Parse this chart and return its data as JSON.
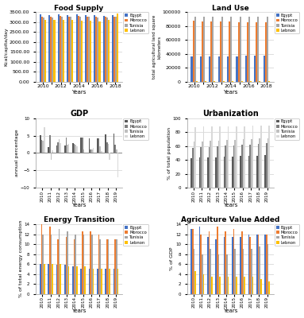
{
  "years_10_18": [
    2010,
    2012,
    2014,
    2016,
    2018
  ],
  "years_10_18_full": [
    2010,
    2011,
    2012,
    2013,
    2014,
    2015,
    2016,
    2017,
    2018
  ],
  "years_10_19": [
    2010,
    2011,
    2012,
    2013,
    2014,
    2015,
    2016,
    2017,
    2018,
    2019
  ],
  "food_supply": {
    "Egypt": [
      3380,
      3350,
      3390,
      3370,
      3380,
      3350,
      3360,
      3330,
      3350
    ],
    "Morocco": [
      3280,
      3270,
      3310,
      3290,
      3300,
      3290,
      3260,
      3280,
      3290
    ],
    "Tunisia": [
      3240,
      3250,
      3280,
      3260,
      3270,
      3270,
      3220,
      3250,
      3260
    ],
    "Lebnon": [
      3100,
      3120,
      3110,
      3100,
      3080,
      3060,
      3050,
      3100,
      3450
    ]
  },
  "land_use": {
    "Egypt": [
      36000,
      36000,
      36000,
      37000,
      37000,
      37000,
      38000,
      38000,
      38000
    ],
    "Morocco": [
      88000,
      87000,
      87000,
      87000,
      87000,
      86000,
      86000,
      85000,
      85000
    ],
    "Tunisia": [
      94000,
      94000,
      94000,
      94000,
      93000,
      93000,
      93000,
      93000,
      93000
    ],
    "Lebnon": [
      1100,
      1100,
      1100,
      1100,
      1100,
      1100,
      1100,
      1100,
      1100
    ]
  },
  "gdp": {
    "Egypt": [
      5.1,
      1.8,
      2.2,
      2.2,
      2.9,
      4.4,
      4.3,
      4.2,
      5.3,
      5.6
    ],
    "Morocco": [
      3.8,
      5.2,
      3.0,
      4.5,
      2.6,
      4.5,
      1.1,
      4.2,
      3.1,
      2.5
    ],
    "Tunisia": [
      3.5,
      -1.9,
      3.9,
      2.4,
      2.3,
      1.1,
      1.0,
      1.9,
      2.7,
      1.0
    ],
    "Lebnon": [
      7.5,
      0.9,
      2.8,
      2.6,
      2.0,
      0.2,
      1.5,
      0.6,
      -1.9,
      -6.9
    ]
  },
  "urbanization": {
    "Egypt": [
      43.0,
      43.4,
      43.8,
      44.2,
      44.6,
      45.0,
      45.5,
      46.0,
      46.5,
      47.0
    ],
    "Morocco": [
      57.7,
      58.3,
      59.0,
      59.7,
      60.4,
      61.1,
      61.8,
      62.5,
      63.2,
      63.9
    ],
    "Tunisia": [
      66.2,
      66.8,
      67.3,
      67.9,
      68.5,
      69.1,
      69.7,
      70.2,
      70.8,
      71.4
    ],
    "Lebnon": [
      87.5,
      87.7,
      87.9,
      88.1,
      88.3,
      88.5,
      88.7,
      88.9,
      89.1,
      89.3
    ]
  },
  "energy_transition": {
    "Egypt": [
      6.0,
      6.0,
      5.8,
      5.8,
      5.5,
      5.0,
      5.0,
      5.0,
      5.0,
      5.0
    ],
    "Morocco": [
      14.0,
      13.5,
      11.0,
      11.5,
      11.0,
      12.5,
      12.5,
      12.0,
      11.0,
      11.0
    ],
    "Tunisia": [
      12.0,
      12.0,
      13.0,
      12.5,
      12.0,
      12.0,
      12.0,
      11.0,
      11.0,
      11.0
    ],
    "Lebnon": [
      6.0,
      6.0,
      6.0,
      5.5,
      5.5,
      5.5,
      5.0,
      5.0,
      5.0,
      5.0
    ]
  },
  "agri_value": {
    "Egypt": [
      13.0,
      13.5,
      11.5,
      11.0,
      11.5,
      11.5,
      11.5,
      12.0,
      12.0,
      12.0
    ],
    "Morocco": [
      13.0,
      12.0,
      12.5,
      13.5,
      12.5,
      13.0,
      12.5,
      11.5,
      12.0,
      12.0
    ],
    "Tunisia": [
      9.0,
      8.0,
      9.0,
      8.0,
      8.0,
      9.0,
      9.0,
      9.0,
      9.5,
      10.0
    ],
    "Lebnon": [
      4.5,
      4.0,
      3.5,
      3.5,
      3.5,
      3.5,
      3.5,
      3.5,
      3.0,
      2.5
    ]
  },
  "colors": {
    "Egypt": "#4472c4",
    "Morocco": "#ed7d31",
    "Tunisia": "#a5a5a5",
    "Lebnon": "#ffc000"
  },
  "grey_colors": {
    "Egypt": "#595959",
    "Morocco": "#808080",
    "Tunisia": "#bfbfbf",
    "Lebnon": "#d9d9d9"
  },
  "legend_order": [
    "Egypt",
    "Morocco",
    "Tunisia",
    "Lebnon"
  ],
  "panel_bg": "#ffffff",
  "fig_bg": "#ffffff",
  "grid_color": "#d0d0d0"
}
